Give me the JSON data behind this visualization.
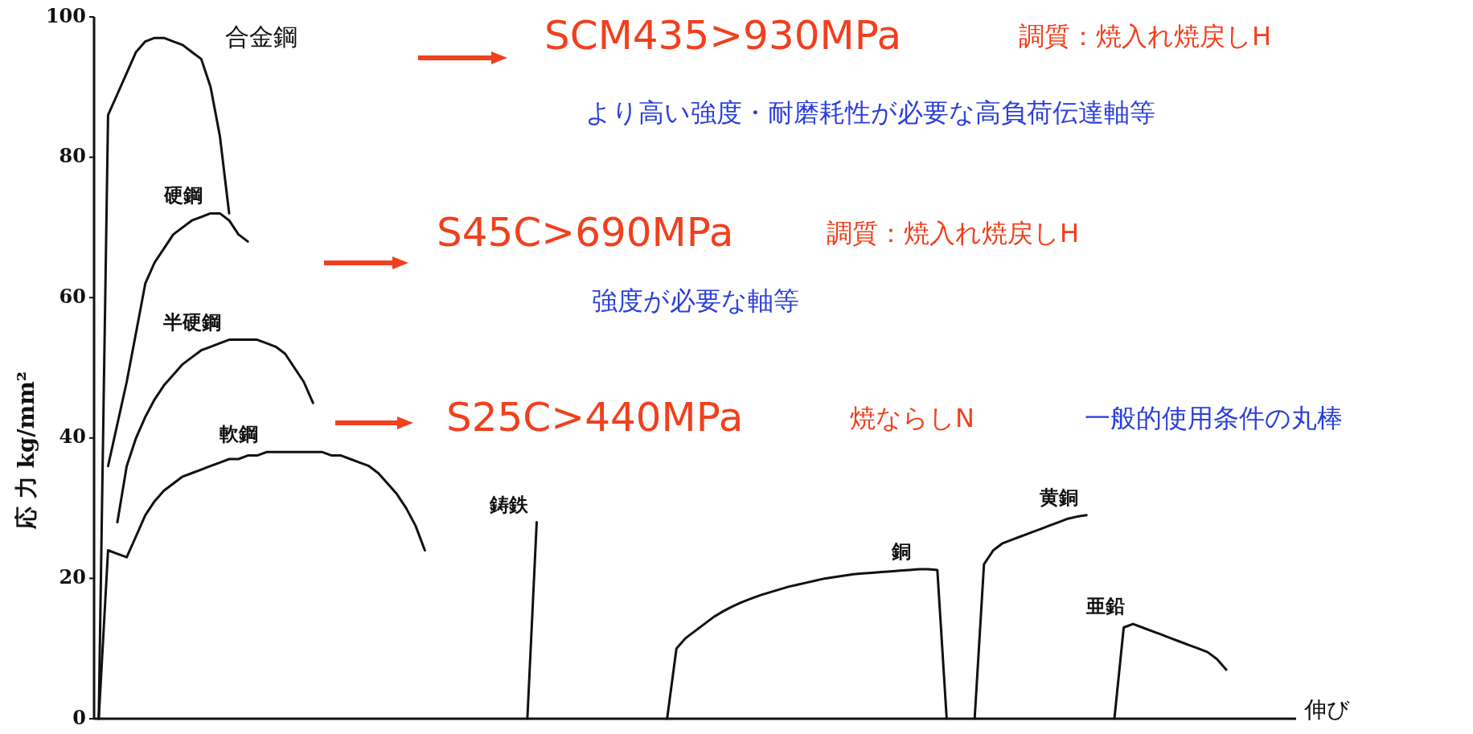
{
  "chart_data": {
    "type": "line",
    "ylabel": "応 力 kg/mm²",
    "xlabel": "伸び",
    "ylim": [
      0,
      100
    ],
    "yticks": [
      0,
      20,
      40,
      60,
      80,
      100
    ],
    "grid": false,
    "tick_labels": "y",
    "marker": "none",
    "line_style": "solid",
    "categories": [
      null,
      null,
      null,
      null,
      null,
      null,
      null,
      null,
      null,
      null,
      null,
      null,
      null,
      null,
      null,
      null,
      null,
      null,
      null,
      null,
      null,
      null,
      null,
      null,
      null,
      null,
      null,
      null,
      null,
      null,
      null,
      null,
      null,
      null,
      null,
      null,
      null,
      null,
      null,
      null,
      null,
      null,
      null,
      null,
      null,
      null,
      null,
      null,
      null,
      null,
      null,
      null,
      null,
      null,
      null,
      null,
      null,
      null,
      null,
      null,
      null,
      null,
      null,
      null,
      null,
      null,
      null,
      null,
      null,
      null,
      null,
      null,
      null,
      null,
      null,
      null,
      null,
      null,
      null,
      null,
      null,
      null,
      null,
      null,
      null,
      null,
      null,
      null,
      null,
      null,
      null,
      null,
      null,
      null,
      null,
      null,
      null,
      null,
      null,
      null,
      null,
      null,
      null,
      null,
      null,
      null,
      null,
      null,
      null,
      null,
      null,
      null,
      null,
      null,
      null,
      null,
      null,
      null,
      null,
      null,
      null,
      null,
      null,
      null,
      null,
      null,
      null,
      null,
      null
    ],
    "series": [
      {
        "color": "#111111",
        "values": [
          0,
          86,
          89,
          92,
          95,
          96.5,
          97,
          97,
          96.5,
          96,
          95,
          94,
          90,
          83,
          72,
          null,
          null,
          null,
          null,
          null,
          null,
          null,
          null,
          null,
          null,
          null,
          null,
          null,
          null,
          null,
          null,
          null,
          null,
          null,
          null,
          null,
          null,
          null,
          null,
          null,
          null,
          null,
          null,
          null,
          null,
          null,
          null,
          null,
          null,
          null,
          null,
          null,
          null,
          null,
          null,
          null,
          null,
          null,
          null,
          null,
          null,
          null,
          null,
          null,
          null,
          null,
          null,
          null,
          null,
          null,
          null,
          null,
          null,
          null,
          null,
          null,
          null,
          null,
          null,
          null,
          null,
          null,
          null,
          null,
          null,
          null,
          null,
          null,
          null,
          null,
          null,
          null,
          null,
          null,
          null,
          null,
          null,
          null,
          null,
          null,
          null,
          null,
          null,
          null,
          null,
          null,
          null,
          null,
          null,
          null,
          null,
          null,
          null,
          null,
          null,
          null,
          null,
          null,
          null,
          null,
          null,
          null,
          null,
          null,
          null,
          null,
          null,
          null,
          null
        ]
      },
      {
        "name": "硬鋼",
        "color": "#111111",
        "values": [
          null,
          36,
          42,
          48,
          55,
          62,
          65,
          67,
          69,
          70,
          71,
          71.5,
          72,
          72,
          71,
          69,
          68,
          null,
          null,
          null,
          null,
          null,
          null,
          null,
          null,
          null,
          null,
          null,
          null,
          null,
          null,
          null,
          null,
          null,
          null,
          null,
          null,
          null,
          null,
          null,
          null,
          null,
          null,
          null,
          null,
          null,
          null,
          null,
          null,
          null,
          null,
          null,
          null,
          null,
          null,
          null,
          null,
          null,
          null,
          null,
          null,
          null,
          null,
          null,
          null,
          null,
          null,
          null,
          null,
          null,
          null,
          null,
          null,
          null,
          null,
          null,
          null,
          null,
          null,
          null,
          null,
          null,
          null,
          null,
          null,
          null,
          null,
          null,
          null,
          null,
          null,
          null,
          null,
          null,
          null,
          null,
          null,
          null,
          null,
          null,
          null,
          null,
          null,
          null,
          null,
          null,
          null,
          null,
          null,
          null,
          null,
          null,
          null,
          null,
          null,
          null,
          null,
          null,
          null,
          null,
          null,
          null,
          null,
          null,
          null,
          null,
          null,
          null,
          null
        ]
      },
      {
        "name": "半硬鋼",
        "color": "#111111",
        "values": [
          null,
          null,
          28,
          36,
          40,
          43,
          45.5,
          47.5,
          49,
          50.5,
          51.5,
          52.5,
          53,
          53.5,
          54,
          54,
          54,
          54,
          53.5,
          53,
          52,
          50,
          48,
          45,
          null,
          null,
          null,
          null,
          null,
          null,
          null,
          null,
          null,
          null,
          null,
          null,
          null,
          null,
          null,
          null,
          null,
          null,
          null,
          null,
          null,
          null,
          null,
          null,
          null,
          null,
          null,
          null,
          null,
          null,
          null,
          null,
          null,
          null,
          null,
          null,
          null,
          null,
          null,
          null,
          null,
          null,
          null,
          null,
          null,
          null,
          null,
          null,
          null,
          null,
          null,
          null,
          null,
          null,
          null,
          null,
          null,
          null,
          null,
          null,
          null,
          null,
          null,
          null,
          null,
          null,
          null,
          null,
          null,
          null,
          null,
          null,
          null,
          null,
          null,
          null,
          null,
          null,
          null,
          null,
          null,
          null,
          null,
          null,
          null,
          null,
          null,
          null,
          null,
          null,
          null,
          null,
          null,
          null,
          null,
          null,
          null,
          null,
          null,
          null,
          null,
          null,
          null,
          null,
          null
        ]
      },
      {
        "name": "軟鋼",
        "color": "#111111",
        "values": [
          0,
          24,
          23.5,
          23,
          26,
          29,
          31,
          32.5,
          33.5,
          34.5,
          35,
          35.5,
          36,
          36.5,
          37,
          37,
          37.5,
          37.5,
          38,
          38,
          38,
          38,
          38,
          38,
          38,
          37.5,
          37.5,
          37,
          36.5,
          36,
          35,
          33.5,
          32,
          30,
          27.5,
          24,
          null,
          null,
          null,
          null,
          null,
          null,
          null,
          null,
          null,
          null,
          null,
          null,
          null,
          null,
          null,
          null,
          null,
          null,
          null,
          null,
          null,
          null,
          null,
          null,
          null,
          null,
          null,
          null,
          null,
          null,
          null,
          null,
          null,
          null,
          null,
          null,
          null,
          null,
          null,
          null,
          null,
          null,
          null,
          null,
          null,
          null,
          null,
          null,
          null,
          null,
          null,
          null,
          null,
          null,
          null,
          null,
          null,
          null,
          null,
          null,
          null,
          null,
          null,
          null,
          null,
          null,
          null,
          null,
          null,
          null,
          null,
          null,
          null,
          null,
          null,
          null,
          null,
          null,
          null,
          null,
          null,
          null,
          null,
          null,
          null,
          null,
          null,
          null,
          null,
          null,
          null,
          null,
          null
        ]
      },
      {
        "name": "鋳鉄",
        "color": "#111111",
        "values": [
          null,
          null,
          null,
          null,
          null,
          null,
          null,
          null,
          null,
          null,
          null,
          null,
          null,
          null,
          null,
          null,
          null,
          null,
          null,
          null,
          null,
          null,
          null,
          null,
          null,
          null,
          null,
          null,
          null,
          null,
          null,
          null,
          null,
          null,
          null,
          null,
          null,
          null,
          null,
          null,
          null,
          null,
          null,
          null,
          null,
          null,
          0,
          28,
          null,
          null,
          null,
          null,
          null,
          null,
          null,
          null,
          null,
          null,
          null,
          null,
          null,
          null,
          null,
          null,
          null,
          null,
          null,
          null,
          null,
          null,
          null,
          null,
          null,
          null,
          null,
          null,
          null,
          null,
          null,
          null,
          null,
          null,
          null,
          null,
          null,
          null,
          null,
          null,
          null,
          null,
          null,
          null,
          null,
          null,
          null,
          null,
          null,
          null,
          null,
          null,
          null,
          null,
          null,
          null,
          null,
          null,
          null,
          null,
          null,
          null,
          null,
          null,
          null,
          null,
          null,
          null,
          null,
          null,
          null,
          null,
          null,
          null,
          null,
          null,
          null,
          null,
          null,
          null,
          null
        ]
      },
      {
        "name": "銅",
        "color": "#111111",
        "values": [
          null,
          null,
          null,
          null,
          null,
          null,
          null,
          null,
          null,
          null,
          null,
          null,
          null,
          null,
          null,
          null,
          null,
          null,
          null,
          null,
          null,
          null,
          null,
          null,
          null,
          null,
          null,
          null,
          null,
          null,
          null,
          null,
          null,
          null,
          null,
          null,
          null,
          null,
          null,
          null,
          null,
          null,
          null,
          null,
          null,
          null,
          null,
          null,
          null,
          null,
          null,
          null,
          null,
          null,
          null,
          null,
          null,
          null,
          null,
          null,
          null,
          0,
          10,
          11.5,
          12.5,
          13.5,
          14.5,
          15.3,
          16,
          16.6,
          17.1,
          17.6,
          18,
          18.4,
          18.8,
          19.1,
          19.4,
          19.7,
          20,
          20.2,
          20.4,
          20.6,
          20.7,
          20.8,
          20.9,
          21,
          21.1,
          21.2,
          21.3,
          21.3,
          21.2,
          0,
          null,
          null,
          null,
          null,
          null,
          null,
          null,
          null,
          null,
          null,
          null,
          null,
          null,
          null,
          null,
          null,
          null,
          null,
          null,
          null,
          null,
          null,
          null,
          null,
          null,
          null,
          null,
          null,
          null,
          null,
          null,
          null,
          null,
          null,
          null,
          null,
          null
        ]
      },
      {
        "name": "黄銅",
        "color": "#111111",
        "values": [
          null,
          null,
          null,
          null,
          null,
          null,
          null,
          null,
          null,
          null,
          null,
          null,
          null,
          null,
          null,
          null,
          null,
          null,
          null,
          null,
          null,
          null,
          null,
          null,
          null,
          null,
          null,
          null,
          null,
          null,
          null,
          null,
          null,
          null,
          null,
          null,
          null,
          null,
          null,
          null,
          null,
          null,
          null,
          null,
          null,
          null,
          null,
          null,
          null,
          null,
          null,
          null,
          null,
          null,
          null,
          null,
          null,
          null,
          null,
          null,
          null,
          null,
          null,
          null,
          null,
          null,
          null,
          null,
          null,
          null,
          null,
          null,
          null,
          null,
          null,
          null,
          null,
          null,
          null,
          null,
          null,
          null,
          null,
          null,
          null,
          null,
          null,
          null,
          null,
          null,
          null,
          null,
          null,
          null,
          0,
          22,
          24,
          25,
          25.5,
          26,
          26.5,
          27,
          27.5,
          28,
          28.5,
          28.8,
          29,
          null,
          null,
          null,
          null,
          null,
          null,
          null,
          null,
          null,
          null,
          null,
          null,
          null,
          null,
          null,
          null,
          null,
          null,
          null,
          null,
          null,
          null
        ]
      },
      {
        "name": "亜鉛",
        "color": "#111111",
        "values": [
          null,
          null,
          null,
          null,
          null,
          null,
          null,
          null,
          null,
          null,
          null,
          null,
          null,
          null,
          null,
          null,
          null,
          null,
          null,
          null,
          null,
          null,
          null,
          null,
          null,
          null,
          null,
          null,
          null,
          null,
          null,
          null,
          null,
          null,
          null,
          null,
          null,
          null,
          null,
          null,
          null,
          null,
          null,
          null,
          null,
          null,
          null,
          null,
          null,
          null,
          null,
          null,
          null,
          null,
          null,
          null,
          null,
          null,
          null,
          null,
          null,
          null,
          null,
          null,
          null,
          null,
          null,
          null,
          null,
          null,
          null,
          null,
          null,
          null,
          null,
          null,
          null,
          null,
          null,
          null,
          null,
          null,
          null,
          null,
          null,
          null,
          null,
          null,
          null,
          null,
          null,
          null,
          null,
          null,
          null,
          null,
          null,
          null,
          null,
          null,
          null,
          null,
          null,
          null,
          null,
          null,
          null,
          null,
          null,
          0,
          13,
          13.5,
          13,
          12.5,
          12,
          11.5,
          11,
          10.5,
          10,
          9.5,
          8.5,
          7,
          null,
          null,
          null,
          null,
          null,
          null,
          null
        ]
      }
    ],
    "annotations": [
      "合金鋼",
      "SCM435>930MPa",
      "調質：焼入れ焼戻しH",
      "より高い強度・耐磨耗性が必要な高負荷伝達軸等",
      "S45C>690MPa",
      "調質：焼入れ焼戻しH",
      "強度が必要な軸等",
      "S25C>440MPa",
      "焼ならしN",
      "一般的使用条件の丸棒"
    ]
  }
}
